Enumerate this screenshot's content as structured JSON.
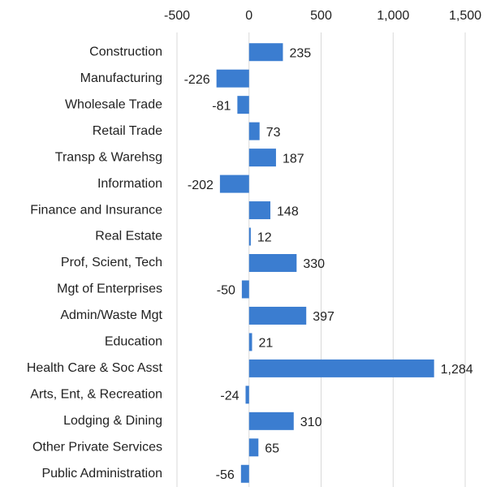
{
  "chart_data": {
    "type": "barh",
    "categories": [
      "Construction",
      "Manufacturing",
      "Wholesale Trade",
      "Retail Trade",
      "Transp & Warehsg",
      "Information",
      "Finance and Insurance",
      "Real Estate",
      "Prof, Scient, Tech",
      "Mgt of Enterprises",
      "Admin/Waste Mgt",
      "Education",
      "Health Care & Soc Asst",
      "Arts, Ent, & Recreation",
      "Lodging & Dining",
      "Other Private Services",
      "Public Administration"
    ],
    "values": [
      235,
      -226,
      -81,
      73,
      187,
      -202,
      148,
      12,
      330,
      -50,
      397,
      21,
      1284,
      -24,
      310,
      65,
      -56
    ],
    "value_labels": [
      "235",
      "-226",
      "-81",
      "73",
      "187",
      "-202",
      "148",
      "12",
      "330",
      "-50",
      "397",
      "21",
      "1,284",
      "-24",
      "310",
      "65",
      "-56"
    ],
    "color": "#3b7dd0",
    "xlim": [
      -500,
      1500
    ],
    "xticks": [
      -500,
      0,
      500,
      {
        "value": 1000,
        "label": "1,000"
      },
      {
        "value": 1500,
        "label": "1,500"
      }
    ],
    "grid": true
  }
}
